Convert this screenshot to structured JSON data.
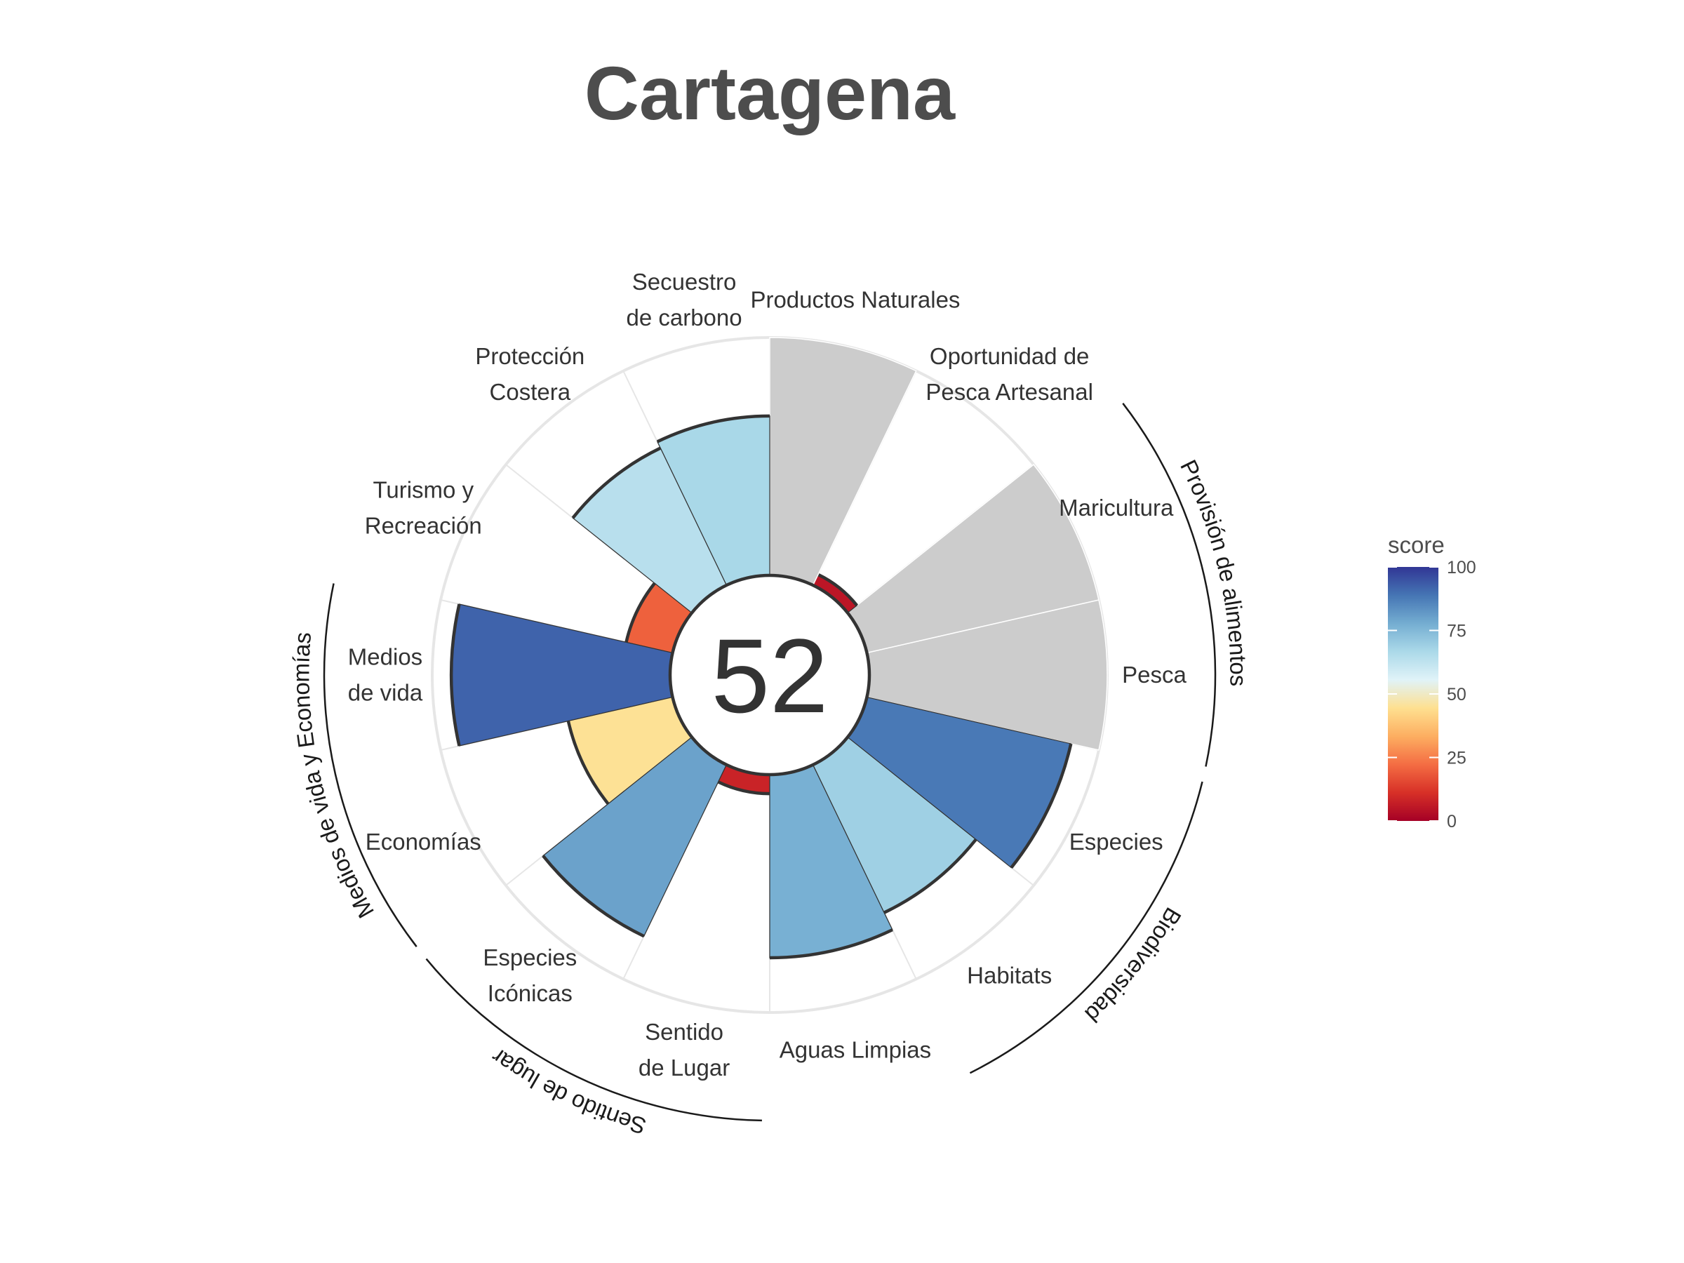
{
  "chart_data": {
    "type": "bar",
    "polar": true,
    "title": "Cartagena",
    "center_score": "52",
    "categories": [
      "Pesca",
      "Maricultura",
      "Oportunidad de Pesca Artesanal",
      "Productos Naturales",
      "Secuestro de carbono",
      "Protección Costera",
      "Turismo y Recreación",
      "Medios de vida",
      "Economías",
      "Especies Icónicas",
      "Sentido de Lugar",
      "Aguas Limpias",
      "Habitats",
      "Especies"
    ],
    "category_label_lines": [
      [
        "Pesca"
      ],
      [
        "Maricultura"
      ],
      [
        "Oportunidad de",
        "Pesca Artesanal"
      ],
      [
        "Productos Naturales"
      ],
      [
        "Secuestro",
        "de carbono"
      ],
      [
        "Protección",
        "Costera"
      ],
      [
        "Turismo y",
        "Recreación"
      ],
      [
        "Medios",
        "de vida"
      ],
      [
        "Economías"
      ],
      [
        "Especies",
        "Icónicas"
      ],
      [
        "Sentido",
        "de Lugar"
      ],
      [
        "Aguas Limpias"
      ],
      [
        "Habitats"
      ],
      [
        "Especies"
      ]
    ],
    "values": [
      null,
      null,
      5,
      null,
      67,
      64,
      20,
      92,
      45,
      80,
      8,
      77,
      69,
      88
    ],
    "na_color": "#cccccc",
    "goal_groups": [
      {
        "name": "Provisión de alimentos",
        "categories": [
          "Pesca",
          "Maricultura"
        ]
      },
      {
        "name": "Biodiversidad",
        "categories": [
          "Especies",
          "Habitats"
        ]
      },
      {
        "name": "Sentido de lugar",
        "categories": [
          "Especies Icónicas",
          "Sentido de Lugar"
        ]
      },
      {
        "name": "Medios de vida y Economías",
        "categories": [
          "Medios de vida",
          "Economías"
        ]
      }
    ],
    "ylim": [
      0,
      100
    ],
    "legend": {
      "title": "score",
      "position": "right",
      "ticks": [
        0,
        25,
        50,
        75,
        100
      ],
      "colors": [
        "#a50026",
        "#d73027",
        "#f46d43",
        "#fdae61",
        "#fee090",
        "#e0f3f8",
        "#abd9e9",
        "#74add1",
        "#4575b4",
        "#313695"
      ]
    }
  }
}
